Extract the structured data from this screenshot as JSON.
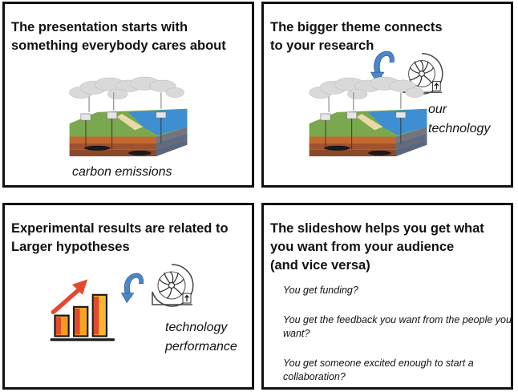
{
  "panels": [
    {
      "heading": "The presentation starts with\nsomething everybody cares about",
      "caption": "carbon emissions",
      "icons": [
        "landscape-cross-section-illustration"
      ]
    },
    {
      "heading": "The bigger theme connects\nto your research",
      "caption": "our\ntechnology",
      "icons": [
        "curved-arrow-icon",
        "turbine-icon",
        "landscape-cross-section-illustration"
      ]
    },
    {
      "heading": "Experimental results are related to\nLarger hypotheses",
      "caption": "technology\nperformance",
      "icons": [
        "bar-chart-growth-icon",
        "curved-arrow-icon",
        "turbine-icon"
      ]
    },
    {
      "heading": "The slideshow helps you get what\nyou want from your audience\n(and vice versa)",
      "items": [
        "You get funding?",
        "You get the feedback you want from the people you want?",
        "You get someone excited enough to start a collaboration?"
      ]
    }
  ],
  "colors": {
    "arrow_blue": "#4a86c8",
    "bar_orange": "#f59a1e",
    "bar_red": "#e5482c",
    "ocean_blue": "#2f7fc1",
    "soil_brown": "#a0522d"
  }
}
